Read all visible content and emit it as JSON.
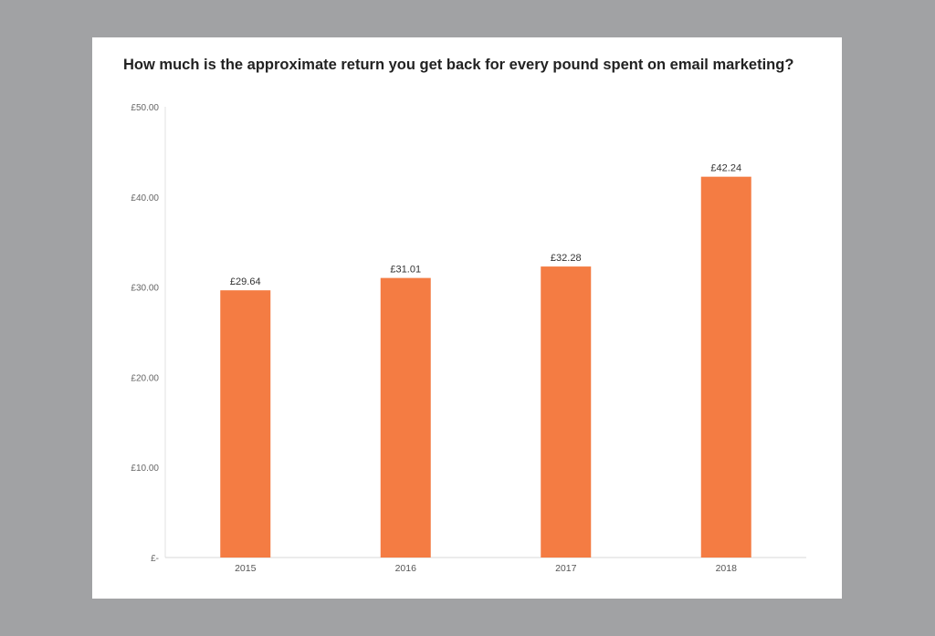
{
  "chart_data": {
    "type": "bar",
    "title": "How much is the approximate return you get back for every pound spent on email marketing?",
    "categories": [
      "2015",
      "2016",
      "2017",
      "2018"
    ],
    "values": [
      29.64,
      31.01,
      32.28,
      42.24
    ],
    "data_labels": [
      "£29.64",
      "£31.01",
      "£32.28",
      "£42.24"
    ],
    "y_ticks": [
      0,
      10,
      20,
      30,
      40,
      50
    ],
    "y_tick_labels": [
      "£-",
      "£10.00",
      "£20.00",
      "£30.00",
      "£40.00",
      "£50.00"
    ],
    "xlabel": "",
    "ylabel": "",
    "ylim": [
      0,
      50
    ],
    "grid": false,
    "legend": "none",
    "bar_color": "#f47c43",
    "background_color": "#a1a2a4"
  }
}
